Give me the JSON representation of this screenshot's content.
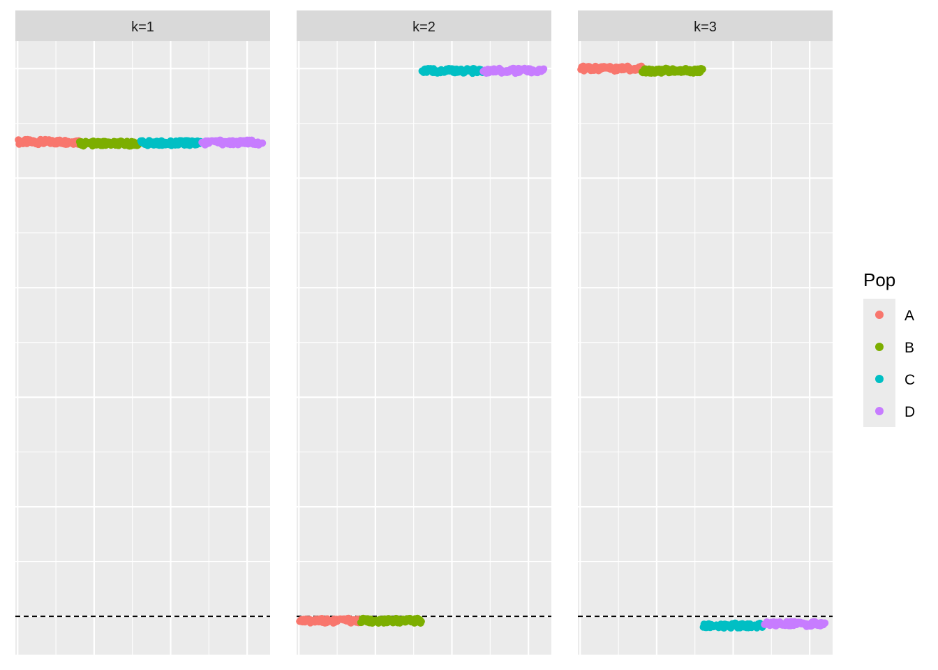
{
  "chart_data": {
    "type": "scatter",
    "facets": [
      "k=1",
      "k=2",
      "k=3"
    ],
    "legend": {
      "title": "Pop",
      "position": "right",
      "entries": [
        {
          "label": "A",
          "color": "#F8766D"
        },
        {
          "label": "B",
          "color": "#7CAE00"
        },
        {
          "label": "C",
          "color": "#00BFC4"
        },
        {
          "label": "D",
          "color": "#C77CFF"
        }
      ]
    },
    "x_range": [
      -3,
      330
    ],
    "y_range": [
      -7,
      105
    ],
    "reference_line": {
      "y": 0,
      "style": "dashed"
    },
    "grid": true,
    "series": [
      {
        "facet": "k=1",
        "group": "A",
        "x_start": 1,
        "x_end": 80,
        "y": 86.6
      },
      {
        "facet": "k=1",
        "group": "B",
        "x_start": 81,
        "x_end": 160,
        "y": 86.3
      },
      {
        "facet": "k=1",
        "group": "C",
        "x_start": 161,
        "x_end": 240,
        "y": 86.4
      },
      {
        "facet": "k=1",
        "group": "D",
        "x_start": 241,
        "x_end": 320,
        "y": 86.5
      },
      {
        "facet": "k=2",
        "group": "A",
        "x_start": 1,
        "x_end": 80,
        "y": -0.8
      },
      {
        "facet": "k=2",
        "group": "B",
        "x_start": 81,
        "x_end": 160,
        "y": -0.8
      },
      {
        "facet": "k=2",
        "group": "C",
        "x_start": 161,
        "x_end": 240,
        "y": 99.6
      },
      {
        "facet": "k=2",
        "group": "D",
        "x_start": 241,
        "x_end": 320,
        "y": 99.6
      },
      {
        "facet": "k=3",
        "group": "A",
        "x_start": 1,
        "x_end": 80,
        "y": 100
      },
      {
        "facet": "k=3",
        "group": "B",
        "x_start": 81,
        "x_end": 160,
        "y": 99.6
      },
      {
        "facet": "k=3",
        "group": "C",
        "x_start": 161,
        "x_end": 240,
        "y": -1.7
      },
      {
        "facet": "k=3",
        "group": "D",
        "x_start": 241,
        "x_end": 320,
        "y": -1.4
      }
    ]
  }
}
